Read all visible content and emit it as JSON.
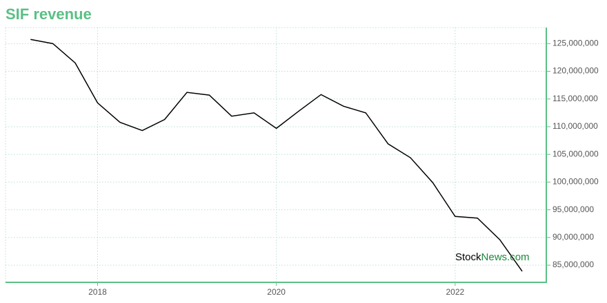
{
  "chart_data": {
    "type": "line",
    "title": "SIF revenue",
    "x": [
      2017.25,
      2017.5,
      2017.75,
      2018.0,
      2018.25,
      2018.5,
      2018.75,
      2019.0,
      2019.25,
      2019.5,
      2019.75,
      2020.0,
      2020.25,
      2020.5,
      2020.75,
      2021.0,
      2021.25,
      2021.5,
      2021.75,
      2022.0,
      2022.25,
      2022.5,
      2022.75
    ],
    "series": [
      {
        "color": "#000000",
        "values": [
          125750000,
          125000000,
          121500000,
          114300000,
          110800000,
          109300000,
          111300000,
          116200000,
          115700000,
          111900000,
          112500000,
          109700000,
          112800000,
          115800000,
          113700000,
          112500000,
          106900000,
          104400000,
          99900000,
          93800000,
          93500000,
          89600000,
          83900000
        ]
      }
    ],
    "xlim": [
      2016.97,
      2023.02
    ],
    "xticks": [
      2018,
      2020,
      2022
    ],
    "ylim": [
      81900000,
      127900000
    ],
    "yticks": [
      {
        "value": 85000000,
        "label": "85,000,000"
      },
      {
        "value": 90000000,
        "label": "90,000,000"
      },
      {
        "value": 95000000,
        "label": "95,000,000"
      },
      {
        "value": 100000000,
        "label": "100,000,000"
      },
      {
        "value": 105000000,
        "label": "105,000,000"
      },
      {
        "value": 110000000,
        "label": "110,000,000"
      },
      {
        "value": 115000000,
        "label": "115,000,000"
      },
      {
        "value": 120000000,
        "label": "120,000,000"
      },
      {
        "value": 125000000,
        "label": "125,000,000"
      }
    ],
    "grid": true,
    "watermark": [
      "Stock",
      "News.com"
    ]
  }
}
